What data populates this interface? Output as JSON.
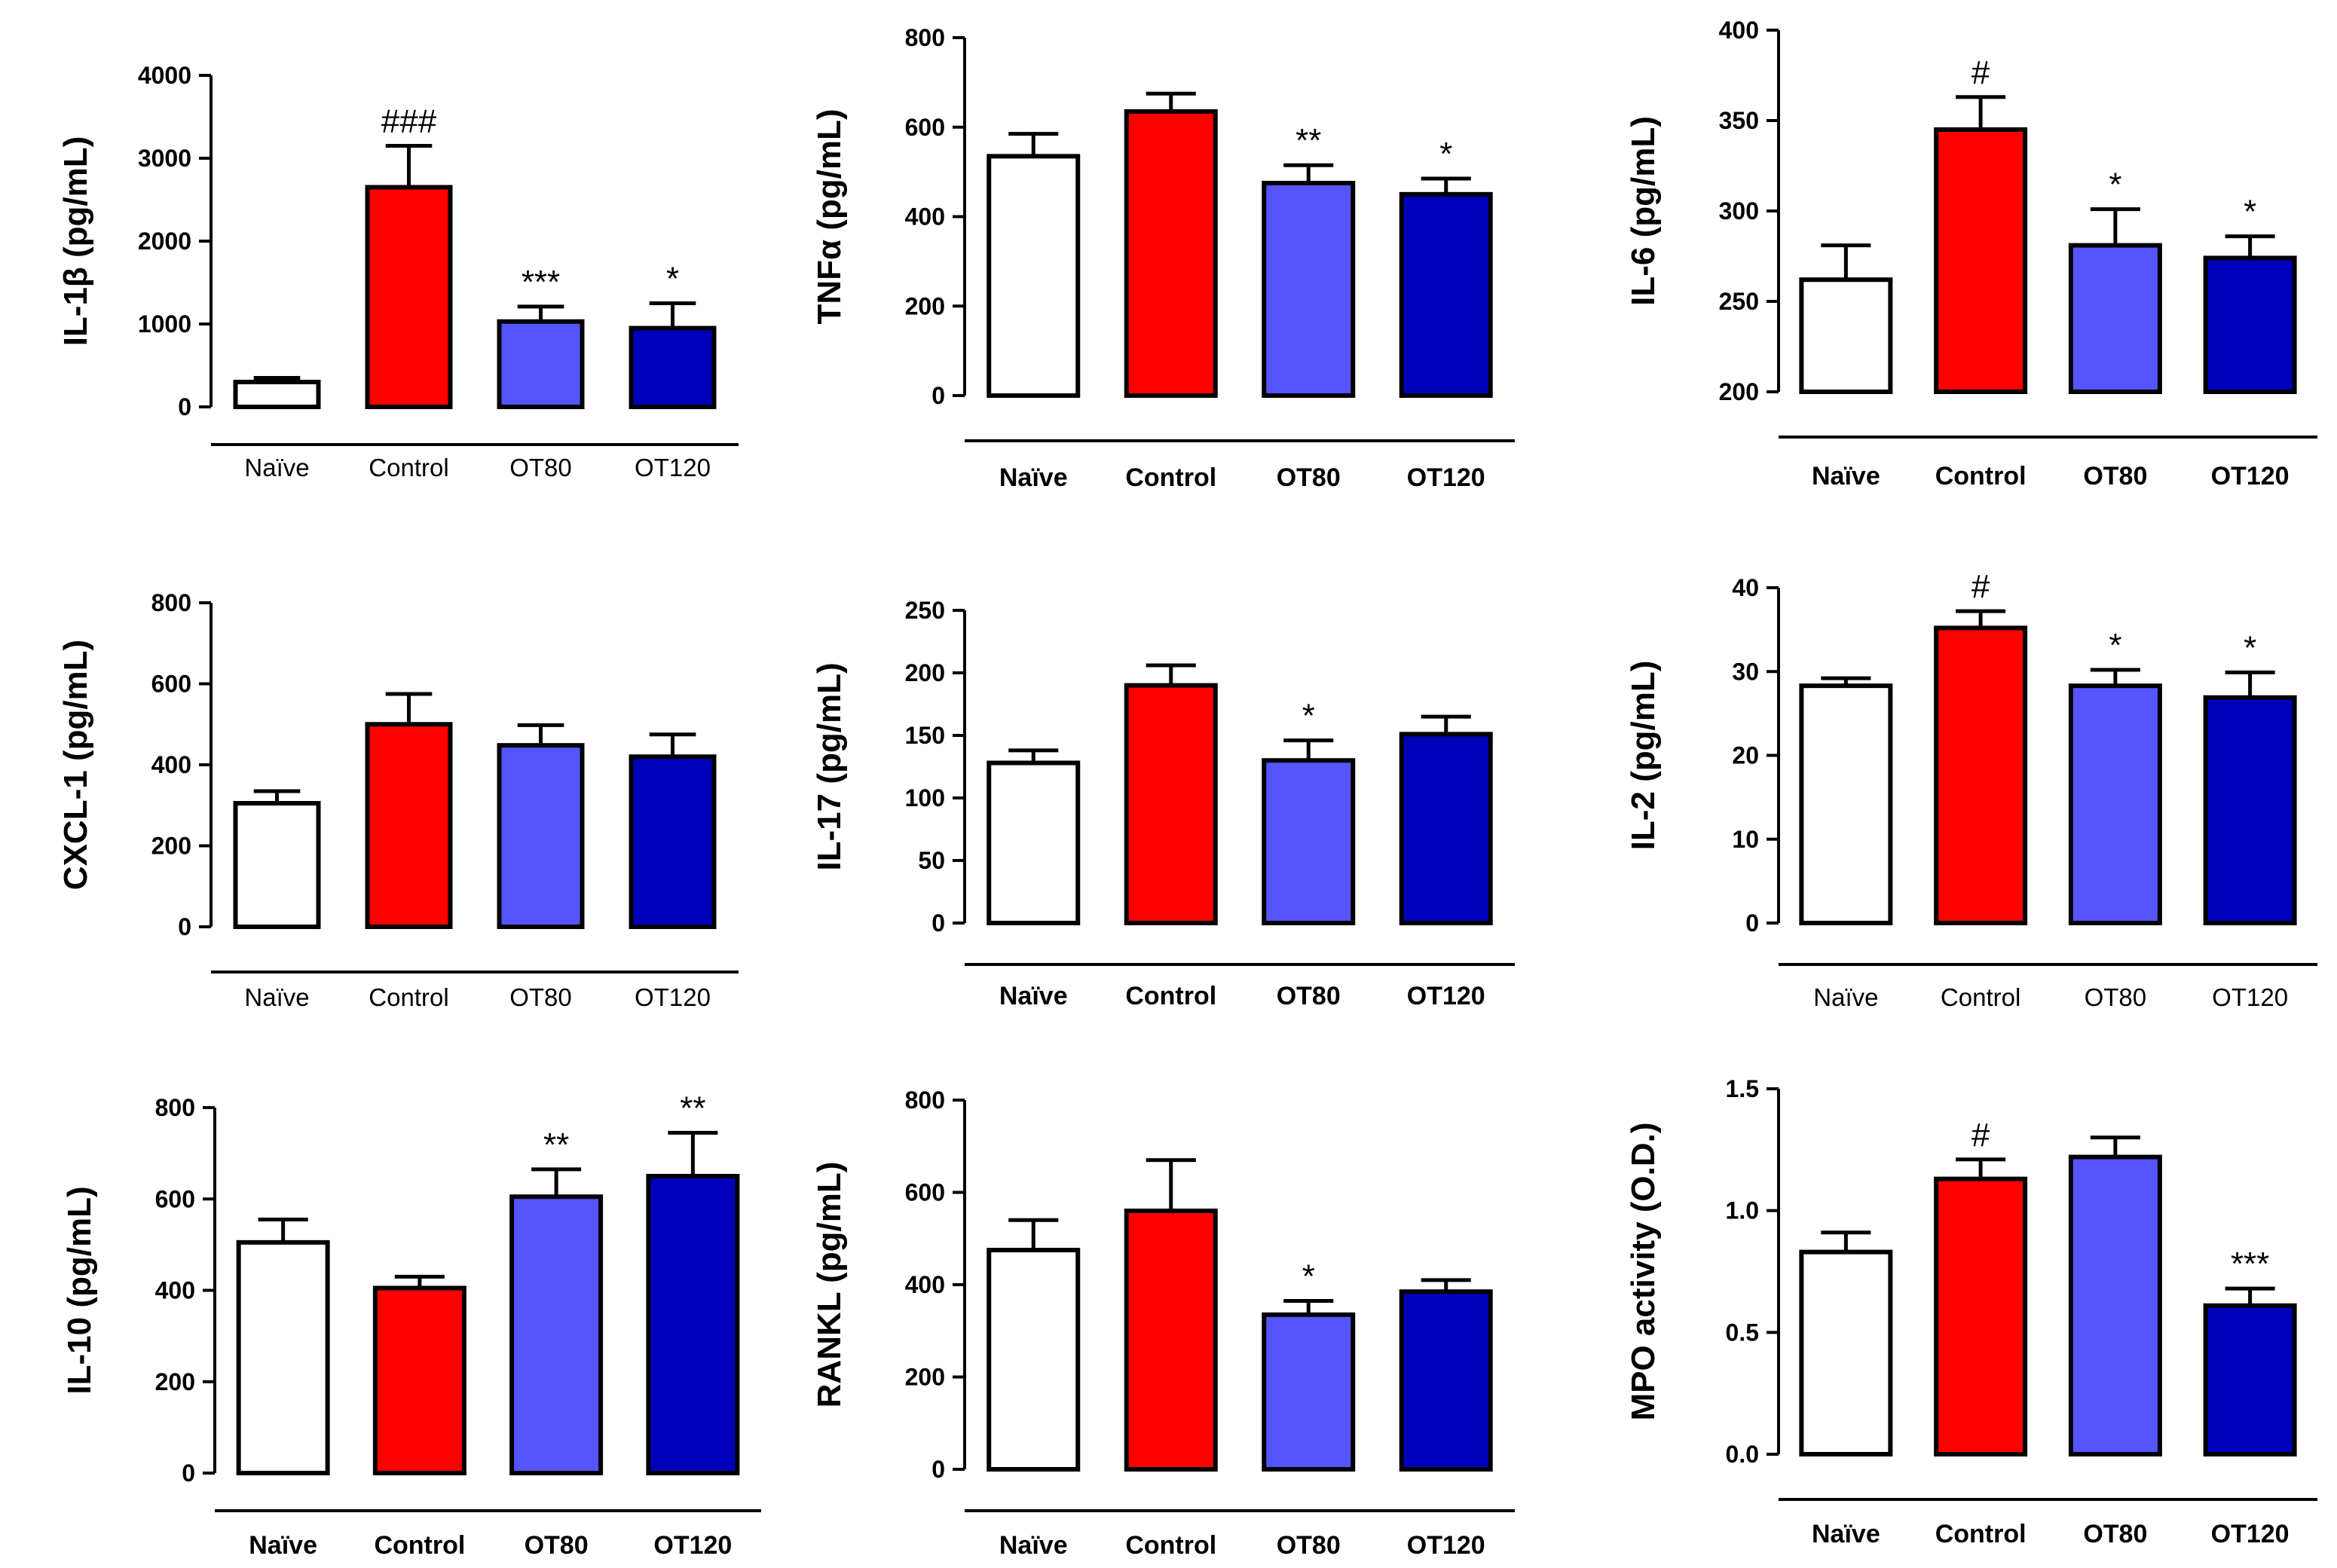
{
  "colors": {
    "naive": "#ffffff",
    "control": "#ff0000",
    "ot80": "#5555ff",
    "ot120": "#0000bb"
  },
  "chart_data": [
    {
      "type": "bar",
      "ylabel": "IL-1β (pg/mL)",
      "categories": [
        "Naïve",
        "Control",
        "OT80",
        "OT120"
      ],
      "values": [
        300,
        2650,
        1030,
        950
      ],
      "errors": [
        50,
        500,
        180,
        300
      ],
      "annotations": [
        "",
        "###",
        "***",
        "*"
      ],
      "ylim": [
        0,
        4000
      ],
      "yticks": [
        "0",
        "1000",
        "2000",
        "3000",
        "4000"
      ]
    },
    {
      "type": "bar",
      "ylabel": "TNFα (pg/mL)",
      "categories": [
        "Naïve",
        "Control",
        "OT80",
        "OT120"
      ],
      "values": [
        535,
        635,
        475,
        450
      ],
      "errors": [
        50,
        40,
        40,
        35
      ],
      "annotations": [
        "",
        "",
        "**",
        "*"
      ],
      "ylim": [
        0,
        800
      ],
      "yticks": [
        "0",
        "200",
        "400",
        "600",
        "800"
      ]
    },
    {
      "type": "bar",
      "ylabel": "IL-6 (pg/mL)",
      "categories": [
        "Naïve",
        "Control",
        "OT80",
        "OT120"
      ],
      "values": [
        262,
        345,
        281,
        274
      ],
      "errors": [
        19,
        18,
        20,
        12
      ],
      "annotations": [
        "",
        "#",
        "*",
        "*"
      ],
      "ylim": [
        200,
        400
      ],
      "yticks": [
        "200",
        "250",
        "300",
        "350",
        "400"
      ]
    },
    {
      "type": "bar",
      "ylabel": "CXCL-1 (pg/mL)",
      "categories": [
        "Naïve",
        "Control",
        "OT80",
        "OT120"
      ],
      "values": [
        305,
        500,
        448,
        420
      ],
      "errors": [
        30,
        75,
        50,
        55
      ],
      "annotations": [
        "",
        "",
        "",
        ""
      ],
      "ylim": [
        0,
        800
      ],
      "yticks": [
        "0",
        "200",
        "400",
        "600",
        "800"
      ]
    },
    {
      "type": "bar",
      "ylabel": "IL-17 (pg/mL)",
      "categories": [
        "Naïve",
        "Control",
        "OT80",
        "OT120"
      ],
      "values": [
        128,
        190,
        130,
        151
      ],
      "errors": [
        10,
        16,
        16,
        14
      ],
      "annotations": [
        "",
        "",
        "*",
        ""
      ],
      "ylim": [
        0,
        250
      ],
      "yticks": [
        "0",
        "50",
        "100",
        "150",
        "200",
        "250"
      ]
    },
    {
      "type": "bar",
      "ylabel": "IL-2 (pg/mL)",
      "categories": [
        "Naïve",
        "Control",
        "OT80",
        "OT120"
      ],
      "values": [
        28.3,
        35.2,
        28.3,
        26.9
      ],
      "errors": [
        0.9,
        2.0,
        1.9,
        3.0
      ],
      "annotations": [
        "",
        "#",
        "*",
        "*"
      ],
      "ylim": [
        0,
        40
      ],
      "yticks": [
        "0",
        "10",
        "20",
        "30",
        "40"
      ]
    },
    {
      "type": "bar",
      "ylabel": "IL-10 (pg/mL)",
      "categories": [
        "Naïve",
        "Control",
        "OT80",
        "OT120"
      ],
      "values": [
        505,
        405,
        605,
        650
      ],
      "errors": [
        50,
        25,
        60,
        95
      ],
      "annotations": [
        "",
        "",
        "**",
        "**"
      ],
      "ylim": [
        0,
        800
      ],
      "yticks": [
        "0",
        "200",
        "400",
        "600",
        "800"
      ]
    },
    {
      "type": "bar",
      "ylabel": "RANKL (pg/mL)",
      "categories": [
        "Naïve",
        "Control",
        "OT80",
        "OT120"
      ],
      "values": [
        475,
        560,
        335,
        385
      ],
      "errors": [
        65,
        110,
        30,
        25
      ],
      "annotations": [
        "",
        "",
        "*",
        ""
      ],
      "ylim": [
        0,
        800
      ],
      "yticks": [
        "0",
        "200",
        "400",
        "600",
        "800"
      ]
    },
    {
      "type": "bar",
      "ylabel": "MPO activity (O.D.)",
      "categories": [
        "Naïve",
        "Control",
        "OT80",
        "OT120"
      ],
      "values": [
        0.83,
        1.13,
        1.22,
        0.61
      ],
      "errors": [
        0.08,
        0.08,
        0.08,
        0.07
      ],
      "annotations": [
        "",
        "#",
        "",
        "***"
      ],
      "ylim": [
        0,
        1.5
      ],
      "yticks": [
        "0.0",
        "0.5",
        "1.0",
        "1.5"
      ]
    }
  ]
}
